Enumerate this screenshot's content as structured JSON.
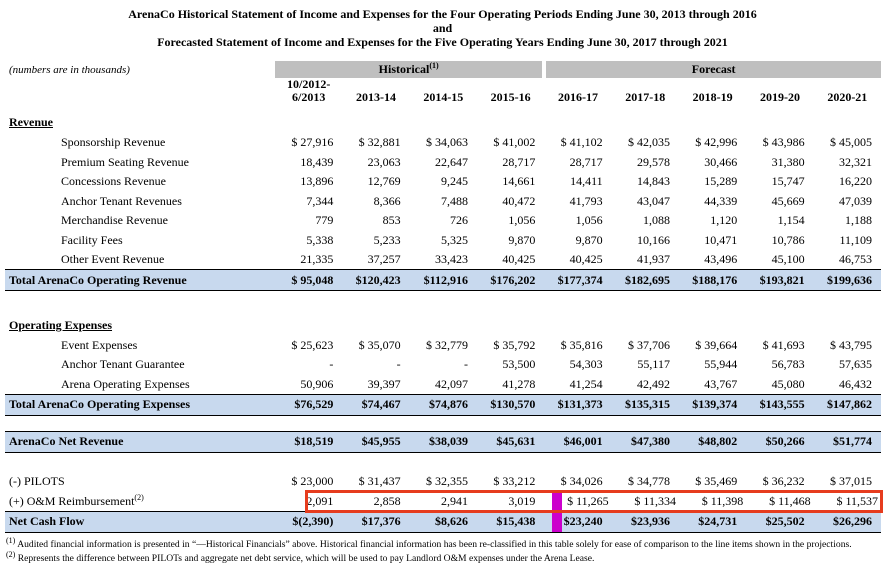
{
  "title": {
    "line1": "ArenaCo Historical Statement of Income and Expenses for the Four Operating Periods Ending June 30, 2013 through 2016",
    "line2": "and",
    "line3": "Forecasted Statement of Income and Expenses for the Five Operating Years Ending June 30, 2017 through 2021"
  },
  "table": {
    "units_note": "(numbers are in thousands)",
    "column_groups": [
      {
        "label": "Historical",
        "sup": "(1)",
        "span": 4
      },
      {
        "label": "Forecast",
        "sup": "",
        "span": 5
      }
    ],
    "columns": [
      "10/2012-\n6/2013",
      "2013-14",
      "2014-15",
      "2015-16",
      "2016-17",
      "2017-18",
      "2018-19",
      "2019-20",
      "2020-21"
    ],
    "sections": [
      {
        "header": "Revenue",
        "rows": [
          {
            "label": "Sponsorship Revenue",
            "indent": true,
            "values": [
              "$ 27,916",
              "$ 32,881",
              "$ 34,063",
              "$ 41,002",
              "$ 41,102",
              "$ 42,035",
              "$ 42,996",
              "$ 43,986",
              "$ 45,005"
            ]
          },
          {
            "label": "Premium Seating Revenue",
            "indent": true,
            "values": [
              "18,439",
              "23,063",
              "22,647",
              "28,717",
              "28,717",
              "29,578",
              "30,466",
              "31,380",
              "32,321"
            ]
          },
          {
            "label": "Concessions Revenue",
            "indent": true,
            "values": [
              "13,896",
              "12,769",
              "9,245",
              "14,661",
              "14,411",
              "14,843",
              "15,289",
              "15,747",
              "16,220"
            ]
          },
          {
            "label": "Anchor Tenant Revenues",
            "indent": true,
            "values": [
              "7,344",
              "8,366",
              "7,488",
              "40,472",
              "41,793",
              "43,047",
              "44,339",
              "45,669",
              "47,039"
            ]
          },
          {
            "label": "Merchandise Revenue",
            "indent": true,
            "values": [
              "779",
              "853",
              "726",
              "1,056",
              "1,056",
              "1,088",
              "1,120",
              "1,154",
              "1,188"
            ]
          },
          {
            "label": "Facility Fees",
            "indent": true,
            "values": [
              "5,338",
              "5,233",
              "5,325",
              "9,870",
              "9,870",
              "10,166",
              "10,471",
              "10,786",
              "11,109"
            ]
          },
          {
            "label": "Other Event Revenue",
            "indent": true,
            "values": [
              "21,335",
              "37,257",
              "33,423",
              "40,425",
              "40,425",
              "41,937",
              "43,496",
              "45,100",
              "46,753"
            ]
          }
        ],
        "total": {
          "label": "Total ArenaCo Operating Revenue",
          "values": [
            "$ 95,048",
            "$120,423",
            "$112,916",
            "$176,202",
            "$177,374",
            "$182,695",
            "$188,176",
            "$193,821",
            "$199,636"
          ]
        }
      },
      {
        "header": "Operating Expenses",
        "rows": [
          {
            "label": "Event Expenses",
            "indent": true,
            "values": [
              "$ 25,623",
              "$ 35,070",
              "$ 32,779",
              "$ 35,792",
              "$ 35,816",
              "$ 37,706",
              "$ 39,664",
              "$ 41,693",
              "$ 43,795"
            ]
          },
          {
            "label": "Anchor Tenant Guarantee",
            "indent": true,
            "values": [
              "-",
              "-",
              "-",
              "53,500",
              "54,303",
              "55,117",
              "55,944",
              "56,783",
              "57,635"
            ]
          },
          {
            "label": "Arena Operating Expenses",
            "indent": true,
            "values": [
              "50,906",
              "39,397",
              "42,097",
              "41,278",
              "41,254",
              "42,492",
              "43,767",
              "45,080",
              "46,432"
            ]
          }
        ],
        "total": {
          "label": "Total ArenaCo Operating Expenses",
          "values": [
            "$76,529",
            "$74,467",
            "$74,876",
            "$130,570",
            "$131,373",
            "$135,315",
            "$139,374",
            "$143,555",
            "$147,862"
          ]
        }
      },
      {
        "header": null,
        "rows": [],
        "total": {
          "label": "ArenaCo Net Revenue",
          "values": [
            "$18,519",
            "$45,955",
            "$38,039",
            "$45,631",
            "$46,001",
            "$47,380",
            "$48,802",
            "$50,266",
            "$51,774"
          ]
        }
      },
      {
        "header": null,
        "rows": [
          {
            "label": "(-) PILOTS",
            "indent": false,
            "values": [
              "$ 23,000",
              "$ 31,437",
              "$ 32,355",
              "$ 33,212",
              "$ 34,026",
              "$ 34,778",
              "$ 35,469",
              "$ 36,232",
              "$ 37,015"
            ]
          },
          {
            "label": "(+) O&M Reimbursement",
            "sup": "(2)",
            "indent": false,
            "id": "om",
            "values": [
              "2,091",
              "2,858",
              "2,941",
              "3,019",
              "$ 11,265",
              "$ 11,334",
              "$ 11,398",
              "$ 11,468",
              "$ 11,537"
            ]
          }
        ],
        "total": {
          "label": "Net Cash Flow",
          "id": "ncf",
          "values": [
            "$(2,390)",
            "$17,376",
            "$8,626",
            "$15,438",
            "$23,240",
            "$23,936",
            "$24,731",
            "$25,502",
            "$26,296"
          ]
        }
      }
    ]
  },
  "annotations": {
    "highlighted_row": "(+) O&M Reimbursement",
    "highlight_box_color": "#e63c1e",
    "divider_bar_color": "#cc00cc"
  },
  "footnotes": [
    {
      "marker": "(1)",
      "text": "Audited financial information is presented in “—Historical Financials” above.  Historical financial information has been re-classified in this table solely for ease of comparison to the line items shown in the projections."
    },
    {
      "marker": "(2)",
      "text": "Represents the difference between PILOTs and aggregate net debt service, which will be used to pay Landlord O&M expenses under the Arena Lease."
    }
  ]
}
